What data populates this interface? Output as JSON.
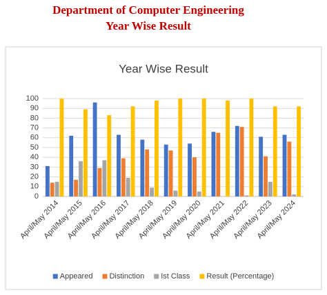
{
  "header": {
    "line1": "Department of Computer Engineering",
    "line2": "Year Wise Result"
  },
  "chart_data": {
    "type": "bar",
    "title": "Year Wise Result",
    "categories": [
      "April/May 2014",
      "April/May 2015",
      "April/May 2016",
      "April/May 2017",
      "April/May 2018",
      "April/May 2019",
      "April/May 2020",
      "April/May 2021",
      "April/May 2022",
      "April/May 2023",
      "April/May 2024"
    ],
    "series": [
      {
        "name": "Appeared",
        "color": "#4472c4",
        "values": [
          31,
          62,
          96,
          63,
          58,
          53,
          54,
          66,
          72,
          61,
          63
        ]
      },
      {
        "name": "Distinction",
        "color": "#ed7d31",
        "values": [
          14,
          17,
          29,
          39,
          48,
          47,
          40,
          65,
          71,
          41,
          56
        ]
      },
      {
        "name": "Ist Class",
        "color": "#a5a5a5",
        "values": [
          15,
          36,
          37,
          19,
          9,
          6,
          5,
          0,
          1,
          15,
          2
        ]
      },
      {
        "name": "Result (Percentage)",
        "color": "#ffc000",
        "values": [
          100,
          89,
          83,
          92,
          98,
          100,
          100,
          98,
          100,
          92,
          92
        ]
      }
    ],
    "ylim": [
      0,
      100
    ],
    "yticks": [
      0,
      10,
      20,
      30,
      40,
      50,
      60,
      70,
      80,
      90,
      100
    ],
    "grid": true,
    "legend": "bottom"
  }
}
